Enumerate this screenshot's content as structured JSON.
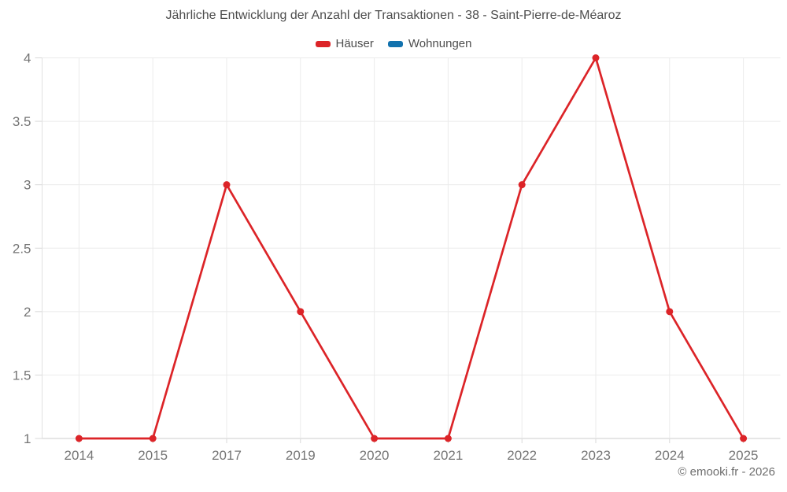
{
  "chart": {
    "title": "Jährliche Entwicklung der Anzahl der Transaktionen - 38 - Saint-Pierre-de-Méaroz",
    "legend": [
      {
        "label": "Häuser",
        "color": "#dc2428"
      },
      {
        "label": "Wohnungen",
        "color": "#1272ae"
      }
    ]
  },
  "footer": {
    "copyright": "© emooki.fr - 2026"
  },
  "colors": {
    "grid_line": "#ebebeb",
    "axis_line": "#cccccc",
    "y_axis_line": "#e0e0e0",
    "tick_mark": "#d9d9d9",
    "tick_label": "#757575",
    "title_text": "#4d4d4d"
  },
  "chart_data": {
    "type": "line",
    "title": "Jährliche Entwicklung der Anzahl der Transaktionen - 38 - Saint-Pierre-de-Méaroz",
    "categories": [
      "2014",
      "2015",
      "2017",
      "2019",
      "2020",
      "2021",
      "2022",
      "2023",
      "2024",
      "2025"
    ],
    "series": [
      {
        "name": "Häuser",
        "color": "#dc2428",
        "values": [
          1,
          1,
          3,
          2,
          1,
          1,
          3,
          4,
          2,
          1
        ]
      },
      {
        "name": "Wohnungen",
        "color": "#1272ae",
        "values": []
      }
    ],
    "xlabel": "",
    "ylabel": "",
    "ylim": [
      1,
      4
    ],
    "yticks": [
      1,
      1.5,
      2,
      2.5,
      3,
      3.5,
      4
    ],
    "grid": true,
    "legend_position": "top"
  }
}
